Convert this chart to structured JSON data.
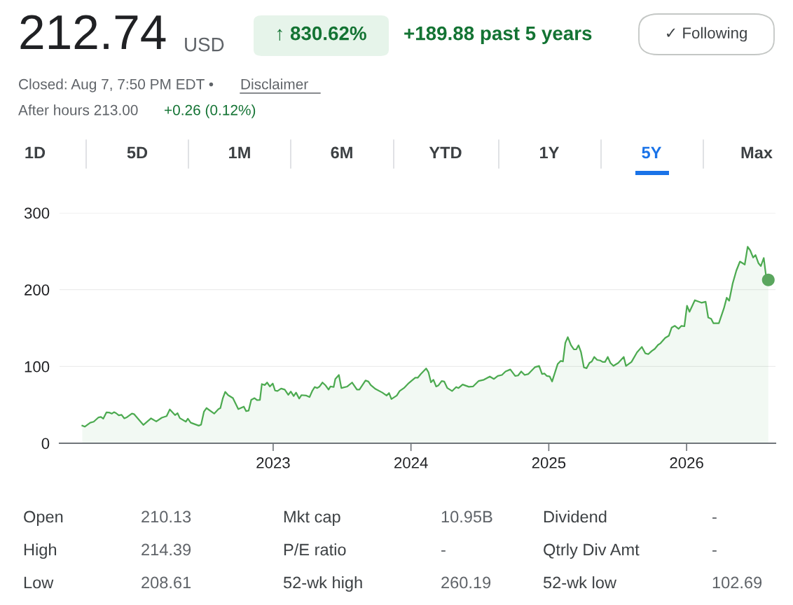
{
  "chart_data": {
    "type": "area",
    "x": [
      2021.615,
      2021.633,
      2021.673,
      2021.698,
      2021.733,
      2021.75,
      2021.767,
      2021.79,
      2021.81,
      2021.83,
      2021.845,
      2021.86,
      2021.88,
      2021.9,
      2021.92,
      2021.94,
      2021.975,
      2021.99,
      2022.058,
      2022.114,
      2022.152,
      2022.192,
      2022.227,
      2022.25,
      2022.288,
      2022.306,
      2022.323,
      2022.367,
      2022.381,
      2022.402,
      2022.46,
      2022.477,
      2022.498,
      2022.516,
      2022.572,
      2022.603,
      2022.617,
      2022.635,
      2022.652,
      2022.673,
      2022.708,
      2022.747,
      2022.787,
      2022.804,
      2022.822,
      2022.841,
      2022.865,
      2022.883,
      2022.904,
      2022.918,
      2022.939,
      2022.956,
      2022.976,
      2022.997,
      2023.014,
      2023.031,
      2023.058,
      2023.084,
      2023.11,
      2023.128,
      2023.149,
      2023.166,
      2023.189,
      2023.206,
      2023.241,
      2023.264,
      2023.285,
      2023.302,
      2023.32,
      2023.337,
      2023.358,
      2023.381,
      2023.402,
      2023.416,
      2023.439,
      2023.451,
      2023.477,
      2023.495,
      2023.538,
      2023.573,
      2023.608,
      2023.626,
      2023.67,
      2023.691,
      2023.708,
      2023.743,
      2023.792,
      2023.823,
      2023.841,
      2023.858,
      2023.897,
      2023.918,
      2023.949,
      2023.984,
      2024.031,
      2024.049,
      2024.072,
      2024.11,
      2024.127,
      2024.145,
      2024.163,
      2024.183,
      2024.2,
      2024.223,
      2024.241,
      2024.264,
      2024.298,
      2024.328,
      2024.345,
      2024.375,
      2024.42,
      2024.45,
      2024.49,
      2024.529,
      2024.572,
      2024.602,
      2024.63,
      2024.66,
      2024.686,
      2024.721,
      2024.756,
      2024.777,
      2024.8,
      2024.825,
      2024.852,
      2024.899,
      2024.93,
      2024.951,
      2024.969,
      2024.986,
      2025.007,
      2025.024,
      2025.065,
      2025.086,
      2025.103,
      2025.12,
      2025.138,
      2025.161,
      2025.182,
      2025.199,
      2025.216,
      2025.234,
      2025.255,
      2025.274,
      2025.295,
      2025.312,
      2025.33,
      2025.351,
      2025.373,
      2025.391,
      2025.408,
      2025.428,
      2025.447,
      2025.469,
      2025.504,
      2025.544,
      2025.56,
      2025.6,
      2025.64,
      2025.675,
      2025.701,
      2025.722,
      2025.748,
      2025.769,
      2025.793,
      2025.81,
      2025.845,
      2025.871,
      2025.892,
      2025.915,
      2025.942,
      2025.963,
      2025.984,
      2026.003,
      2026.021,
      2026.06,
      2026.108,
      2026.138,
      2026.157,
      2026.178,
      2026.195,
      2026.234,
      2026.271,
      2026.291,
      2026.309,
      2026.335,
      2026.361,
      2026.387,
      2026.422,
      2026.443,
      2026.462,
      2026.483,
      2026.5,
      2026.521,
      2026.539,
      2026.56,
      2026.575,
      2026.593
    ],
    "series": [
      {
        "color": "#4caa50",
        "values": [
          22.9,
          21.6,
          26.8,
          28,
          33.7,
          34.3,
          32,
          40.2,
          40,
          38.6,
          40.5,
          39.2,
          36.3,
          37,
          32.4,
          34,
          38.6,
          38,
          23.9,
          32.4,
          28.4,
          33.3,
          35.3,
          44.1,
          36.6,
          39.2,
          32.7,
          28.1,
          32,
          26.8,
          22.9,
          24.2,
          41.2,
          45.8,
          38.6,
          44.4,
          45.8,
          58.8,
          67,
          62.7,
          58.8,
          44.4,
          47.7,
          41.8,
          42.5,
          56.5,
          58.8,
          56.2,
          56.5,
          77.1,
          75.8,
          79.1,
          73.9,
          77.8,
          68.6,
          68,
          71.2,
          69.9,
          63.1,
          67.3,
          61.4,
          66,
          58.2,
          62.7,
          62.1,
          60.1,
          68.6,
          73.2,
          71.9,
          73.9,
          79.1,
          75.2,
          69.9,
          73.9,
          73.2,
          83.7,
          88.9,
          71.9,
          73.9,
          79.1,
          69.9,
          69.9,
          81.7,
          80.4,
          75.8,
          70.6,
          66,
          62.1,
          65.4,
          57.5,
          62.1,
          68,
          71.9,
          78.4,
          85.3,
          85.3,
          90.2,
          97.4,
          92.5,
          79.4,
          82.7,
          73.9,
          75.5,
          81,
          80.4,
          71.9,
          68,
          73.2,
          71.9,
          76.5,
          73.5,
          73.9,
          81,
          82.7,
          86.9,
          83.7,
          87.6,
          88.9,
          93.5,
          96.1,
          87.6,
          88.2,
          93.5,
          88.9,
          90.2,
          99,
          100.7,
          90.2,
          90.8,
          87.6,
          86.9,
          80.4,
          103.3,
          107.2,
          106.5,
          130.7,
          138.2,
          127.8,
          122.2,
          122.2,
          127.5,
          118.6,
          98.7,
          97.7,
          104.6,
          106.5,
          112.4,
          108.5,
          107.8,
          105.9,
          105.9,
          112.4,
          104.6,
          100.7,
          104.6,
          112.4,
          100.7,
          105.9,
          118.3,
          125.5,
          117,
          116,
          120.3,
          122.9,
          128.1,
          130.1,
          137.3,
          139.9,
          150.7,
          152.9,
          149,
          152.9,
          152.3,
          179.1,
          171.2,
          186.3,
          183,
          184.3,
          163.7,
          162.1,
          156.2,
          156.2,
          175.8,
          189.5,
          185.6,
          208.5,
          224.8,
          236.6,
          232.7,
          255.9,
          251,
          241.8,
          245.1,
          234.6,
          230.7,
          241.2,
          219.9,
          212.74
        ]
      },
      {
        "type": "scatter",
        "color": "#5aa65e",
        "x": [
          2026.593
        ],
        "values": [
          212.74
        ],
        "marker": "circle"
      }
    ],
    "xlim": [
      2021.45,
      2026.645
    ],
    "xticks": [
      2023,
      2024,
      2025,
      2026
    ],
    "ylim": [
      0,
      300
    ],
    "yticks": [
      0,
      100,
      200,
      300
    ],
    "grid": "y",
    "legend": false,
    "annotations": [
      "212.74",
      "USD",
      "↑ 830.62%",
      "+189.88 past 5 years",
      "✓ Following",
      "Closed: Aug 7, 7:50 PM EDT •",
      "Disclaimer",
      "After hours 213.00",
      "+0.26 (0.12%)",
      "1D",
      "5D",
      "1M",
      "6M",
      "YTD",
      "1Y",
      "5Y",
      "Max",
      "Open",
      "210.13",
      "Mkt cap",
      "10.95B",
      "Dividend",
      "-",
      "High",
      "214.39",
      "P/E ratio",
      "-",
      "Qtrly Div Amt",
      "-",
      "Low",
      "208.61",
      "52-wk high",
      "260.19",
      "52-wk low",
      "102.69"
    ]
  }
}
